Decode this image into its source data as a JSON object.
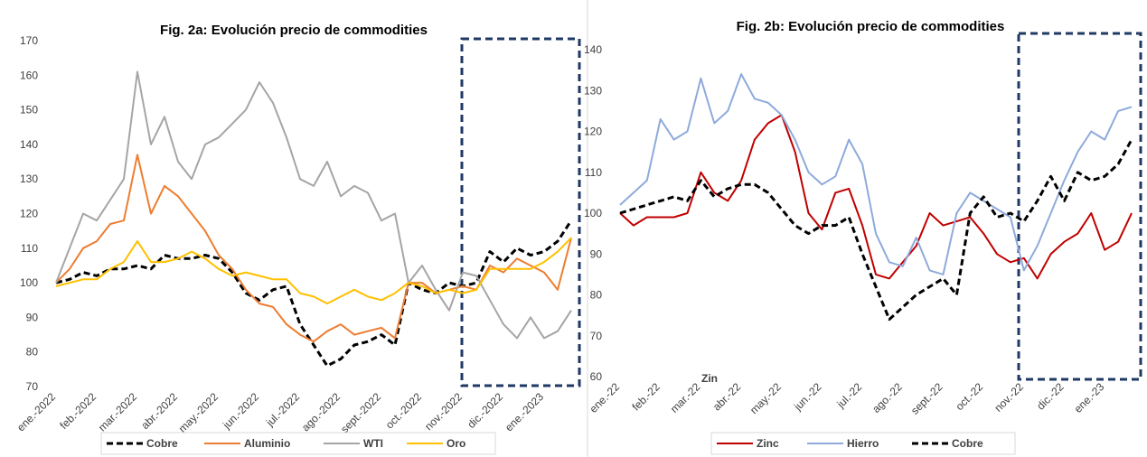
{
  "chart_data": [
    {
      "type": "line",
      "title": "Fig. 2a: Evolución precio de commodities",
      "categories": [
        "ene.-2022",
        null,
        null,
        "feb.-2022",
        null,
        null,
        "mar.-2022",
        null,
        null,
        "abr.-2022",
        null,
        null,
        "may.-2022",
        null,
        null,
        "jun.-2022",
        null,
        null,
        "jul.-2022",
        null,
        null,
        "ago.-2022",
        null,
        null,
        "sept.-2022",
        null,
        null,
        "oct.-2022",
        null,
        null,
        "nov.-2022",
        null,
        null,
        "dic.-2022",
        null,
        null,
        "ene.-2023",
        null,
        null
      ],
      "ylim": [
        70,
        170
      ],
      "yticks": [
        70,
        80,
        90,
        100,
        110,
        120,
        130,
        140,
        150,
        160,
        170
      ],
      "grid": false,
      "legend": "bottom",
      "series": [
        {
          "name": "Cobre",
          "color": "#000000",
          "linestyle": "dashed",
          "values": [
            100,
            101,
            103,
            102,
            104,
            104,
            105,
            104,
            108,
            107,
            107,
            108,
            107,
            103,
            97,
            95,
            98,
            99,
            88,
            82,
            76,
            78,
            82,
            83,
            85,
            82,
            100,
            98,
            97,
            100,
            99,
            100,
            109,
            106,
            110,
            108,
            109,
            112,
            118
          ]
        },
        {
          "name": "Aluminio",
          "color": "#ed7d31",
          "linestyle": "solid",
          "values": [
            100,
            104,
            110,
            112,
            117,
            118,
            137,
            120,
            128,
            125,
            120,
            115,
            108,
            104,
            98,
            94,
            93,
            88,
            85,
            83,
            86,
            88,
            85,
            86,
            87,
            84,
            100,
            100,
            97,
            98,
            99,
            98,
            105,
            103,
            107,
            105,
            103,
            98,
            113
          ]
        },
        {
          "name": "WTI",
          "color": "#a5a5a5",
          "linestyle": "solid",
          "values": [
            100,
            110,
            120,
            118,
            124,
            130,
            161,
            140,
            148,
            135,
            130,
            140,
            142,
            146,
            150,
            158,
            152,
            142,
            130,
            128,
            135,
            125,
            128,
            126,
            118,
            120,
            100,
            105,
            98,
            92,
            103,
            102,
            95,
            88,
            84,
            90,
            84,
            86,
            92
          ]
        },
        {
          "name": "Oro",
          "color": "#ffc000",
          "linestyle": "solid",
          "values": [
            99,
            100,
            101,
            101,
            104,
            106,
            112,
            106,
            106,
            107,
            109,
            107,
            104,
            102,
            103,
            102,
            101,
            101,
            97,
            96,
            94,
            96,
            98,
            96,
            95,
            97,
            100,
            99,
            97,
            98,
            97,
            98,
            104,
            104,
            104,
            104,
            106,
            109,
            113
          ]
        }
      ]
    },
    {
      "type": "line",
      "title": "Fig. 2b: Evolución precio de commodities",
      "annotation": "Zin",
      "categories": [
        "ene.-22",
        null,
        null,
        "feb.-22",
        null,
        null,
        "mar.-22",
        null,
        null,
        "abr.-22",
        null,
        null,
        "may.-22",
        null,
        null,
        "jun.-22",
        null,
        null,
        "jul.-22",
        null,
        null,
        "ago.-22",
        null,
        null,
        "sept.-22",
        null,
        null,
        "oct.-22",
        null,
        null,
        "nov.-22",
        null,
        null,
        "dic.-22",
        null,
        null,
        "ene.-23",
        null,
        null
      ],
      "ylim": [
        60,
        140
      ],
      "yticks": [
        60,
        70,
        80,
        90,
        100,
        110,
        120,
        130,
        140
      ],
      "grid": false,
      "legend": "bottom",
      "series": [
        {
          "name": "Zinc",
          "color": "#c00000",
          "linestyle": "solid",
          "values": [
            100,
            97,
            99,
            99,
            99,
            100,
            110,
            105,
            103,
            108,
            118,
            122,
            124,
            115,
            100,
            96,
            105,
            106,
            97,
            85,
            84,
            88,
            92,
            100,
            97,
            98,
            99,
            95,
            90,
            88,
            89,
            84,
            90,
            93,
            95,
            100,
            91,
            93,
            100
          ]
        },
        {
          "name": "Hierro",
          "color": "#8eaadb",
          "linestyle": "solid",
          "values": [
            102,
            105,
            108,
            123,
            118,
            120,
            133,
            122,
            125,
            134,
            128,
            127,
            124,
            118,
            110,
            107,
            109,
            118,
            112,
            95,
            88,
            87,
            94,
            86,
            85,
            100,
            105,
            103,
            101,
            99,
            86,
            92,
            100,
            108,
            115,
            120,
            118,
            125,
            126
          ]
        },
        {
          "name": "Cobre",
          "color": "#000000",
          "linestyle": "dashed",
          "values": [
            100,
            101,
            102,
            103,
            104,
            103,
            108,
            104,
            106,
            107,
            107,
            105,
            101,
            97,
            95,
            97,
            97,
            99,
            90,
            82,
            74,
            77,
            80,
            82,
            84,
            80,
            100,
            104,
            99,
            100,
            98,
            103,
            109,
            103,
            110,
            108,
            109,
            112,
            118
          ]
        }
      ]
    }
  ]
}
